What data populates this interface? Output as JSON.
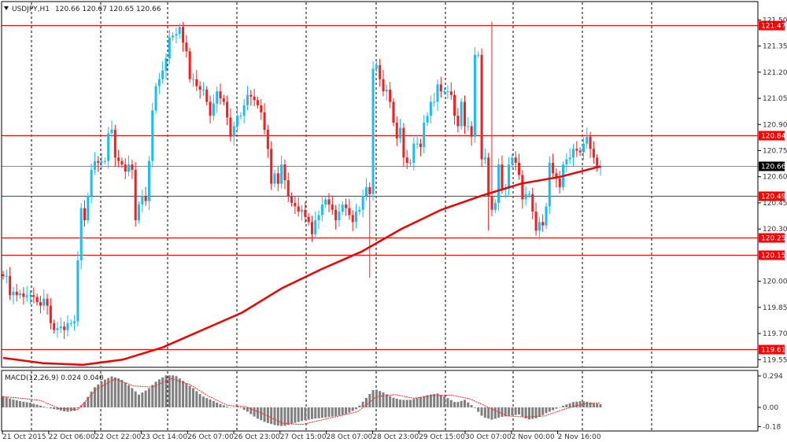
{
  "header": {
    "symbol": "USDJPY,H1",
    "ohlc": "120.66 120.67 120.65 120.66",
    "menu_icon": "triangle-down-icon"
  },
  "colors": {
    "bull": "#17bdf5",
    "bear": "#ff1a1a",
    "level": "#ff0000",
    "bid_line": "#7a8aa0",
    "ma": "#ee0000",
    "histogram": "#7f7f7f",
    "signal": "#ff2020"
  },
  "chart_data": [
    {
      "type": "candlestick",
      "title": "USDJPY,H1",
      "yticks": [
        "121.50",
        "121.35",
        "121.20",
        "121.05",
        "120.90",
        "120.75",
        "120.60",
        "120.45",
        "120.30",
        "120.00",
        "119.85",
        "119.70",
        "119.55"
      ],
      "ylim": [
        119.5,
        121.52
      ],
      "xticks": [
        "21 Oct 2015",
        "22 Oct 06:00",
        "22 Oct 22:00",
        "23 Oct 14:00",
        "26 Oct 07:00",
        "26 Oct 23:00",
        "27 Oct 15:00",
        "28 Oct 07:00",
        "28 Oct 23:00",
        "29 Oct 15:00",
        "30 Oct 07:00",
        "2 Nov 00:00",
        "2 Nov 16:00"
      ],
      "grid": "vertical-dashed",
      "closes": [
        120.03,
        120.03,
        119.92,
        119.94,
        119.92,
        119.93,
        119.91,
        119.92,
        119.92,
        119.91,
        119.88,
        119.86,
        119.9,
        119.86,
        119.76,
        119.72,
        119.73,
        119.74,
        119.72,
        119.76,
        119.76,
        119.77,
        120.12,
        120.42,
        120.35,
        120.49,
        120.64,
        120.69,
        120.68,
        120.69,
        120.69,
        120.85,
        120.87,
        120.71,
        120.69,
        120.67,
        120.63,
        120.67,
        120.64,
        120.35,
        120.44,
        120.49,
        120.46,
        120.69,
        120.98,
        121.12,
        121.16,
        121.21,
        121.28,
        121.4,
        121.41,
        121.42,
        121.46,
        121.37,
        121.32,
        121.16,
        121.16,
        121.12,
        121.1,
        121.1,
        121.03,
        120.95,
        121.02,
        121.09,
        121.05,
        121.03,
        120.94,
        120.83,
        120.89,
        120.95,
        120.95,
        121.01,
        121.07,
        121.06,
        121.04,
        121.01,
        120.97,
        120.87,
        120.76,
        120.56,
        120.62,
        120.56,
        120.67,
        120.58,
        120.49,
        120.45,
        120.43,
        120.4,
        120.41,
        120.37,
        120.34,
        120.27,
        120.35,
        120.38,
        120.44,
        120.47,
        120.44,
        120.41,
        120.35,
        120.4,
        120.44,
        120.42,
        120.38,
        120.34,
        120.4,
        120.41,
        120.49,
        120.54,
        120.5,
        121.22,
        121.24,
        121.16,
        121.09,
        121.1,
        121.03,
        120.91,
        120.82,
        120.88,
        120.71,
        120.68,
        120.68,
        120.79,
        120.79,
        120.77,
        120.91,
        120.95,
        121.03,
        121.03,
        121.13,
        121.09,
        121.09,
        121.09,
        121.07,
        120.95,
        120.89,
        121.03,
        120.89,
        120.89,
        120.83,
        121.3,
        121.3,
        120.7,
        120.71,
        120.49,
        120.41,
        120.45,
        120.67,
        120.53,
        120.53,
        120.67,
        120.71,
        120.68,
        120.61,
        120.47,
        120.5,
        120.5,
        120.4,
        120.29,
        120.34,
        120.32,
        120.43,
        120.68,
        120.62,
        120.59,
        120.54,
        120.67,
        120.7,
        120.71,
        120.76,
        120.75,
        120.74,
        120.79,
        120.83,
        120.76,
        120.71,
        120.65,
        120.66
      ],
      "spikes": [
        {
          "index": 108,
          "low": 120.02
        },
        {
          "index": 144,
          "high": 121.49
        },
        {
          "index": 143,
          "low": 120.29
        },
        {
          "index": 52,
          "high": 121.48
        }
      ],
      "moving_average": [
        119.56,
        119.53,
        119.52,
        119.55,
        119.62,
        119.72,
        119.82,
        119.96,
        120.07,
        120.17,
        120.3,
        120.41,
        120.49,
        120.56,
        120.6,
        120.66
      ],
      "levels": [
        {
          "price": 121.47,
          "label": "121.47",
          "color": "#ff0000"
        },
        {
          "price": 120.84,
          "label": "120.84",
          "color": "#ff0000"
        },
        {
          "price": 120.49,
          "label": "120.49",
          "color": "#ff0000"
        },
        {
          "price": 120.25,
          "label": "120.25",
          "color": "#ff0000"
        },
        {
          "price": 120.15,
          "label": "120.15",
          "color": "#ff0000"
        },
        {
          "price": 119.61,
          "label": "119.61",
          "color": "#ff0000"
        }
      ],
      "bid": {
        "price": 120.66,
        "label": "120.66"
      }
    },
    {
      "type": "bar+line",
      "title": "MACD(12,26,9) 0.024 0.040",
      "yticks": [
        "0.294",
        "0.00",
        "-0.18"
      ],
      "ylim": [
        -0.18,
        0.294
      ],
      "histogram": [
        0.105,
        0.076,
        0.056,
        0.044,
        0.02,
        -0.005,
        -0.022,
        -0.042,
        -0.03,
        0.05,
        0.18,
        0.25,
        0.29,
        0.265,
        0.2,
        0.12,
        0.17,
        0.25,
        0.3,
        0.3,
        0.24,
        0.18,
        0.105,
        0.07,
        0.03,
        0.0,
        0.007,
        -0.04,
        -0.1,
        -0.14,
        -0.165,
        -0.176,
        -0.15,
        -0.127,
        -0.11,
        -0.1,
        -0.09,
        -0.078,
        -0.06,
        -0.017,
        0.076,
        0.174,
        0.14,
        0.093,
        0.07,
        0.07,
        0.093,
        0.118,
        0.13,
        0.093,
        0.044,
        0.07,
        0.007,
        -0.09,
        -0.115,
        -0.09,
        -0.078,
        -0.066,
        -0.115,
        -0.1,
        -0.054,
        -0.017,
        0.02,
        0.05,
        0.06,
        0.044,
        0.03
      ],
      "signal": [
        0.1,
        0.085,
        0.065,
        -0.01,
        -0.02,
        0.17,
        0.265,
        0.2,
        0.19,
        0.27,
        0.215,
        0.105,
        0.02,
        0.007,
        -0.066,
        -0.15,
        -0.16,
        -0.12,
        -0.08,
        -0.04,
        0.1,
        0.12,
        0.085,
        0.11,
        0.115,
        0.08,
        0.0,
        -0.08,
        -0.09,
        -0.08,
        -0.02,
        0.03,
        0.044
      ]
    }
  ]
}
